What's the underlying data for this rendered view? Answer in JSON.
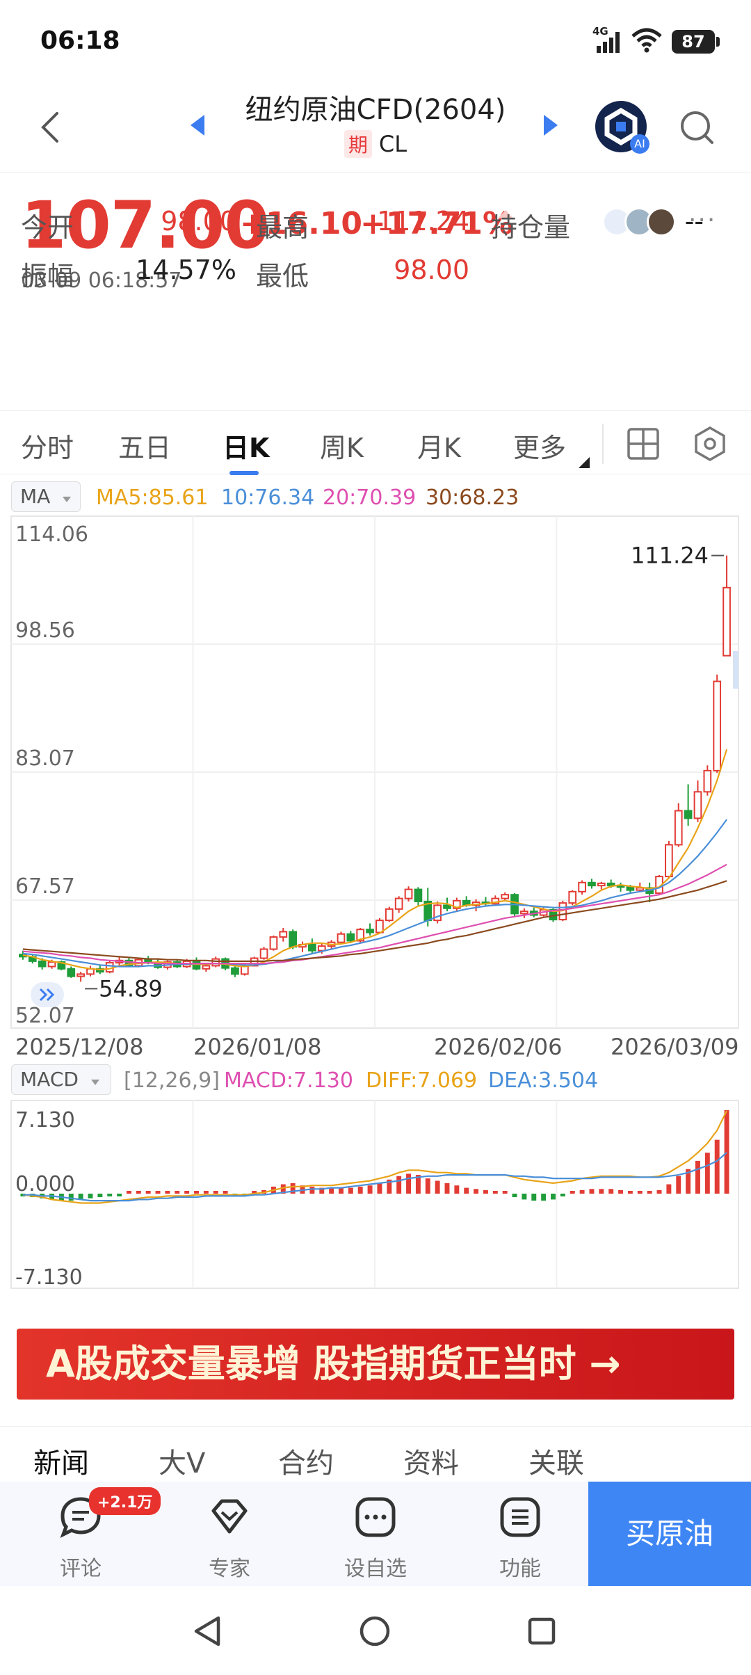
{
  "status_bar": {
    "time": "06:18",
    "network": "4G",
    "battery": "87"
  },
  "header": {
    "title": "纽约原油CFD(2604)",
    "badge": "期",
    "symbol": "CL"
  },
  "quote": {
    "price": "107.00",
    "change": "+16.10",
    "change_pct": "+17.71%",
    "timestamp": "03-09 06:18:57",
    "stats": [
      {
        "label": "今开",
        "value": "98.00",
        "color": "#e23b34"
      },
      {
        "label": "最高",
        "value": "111.24",
        "color": "#e23b34"
      },
      {
        "label": "持仓量",
        "value": "--",
        "color": "#222222"
      },
      {
        "label": "振幅",
        "value": "14.57%",
        "color": "#222222"
      },
      {
        "label": "最低",
        "value": "98.00",
        "color": "#e23b34"
      }
    ]
  },
  "tabs": [
    "分时",
    "五日",
    "日K",
    "周K",
    "月K",
    "更多"
  ],
  "active_tab": "日K",
  "ma_indicator": {
    "selector": "MA",
    "ma5": "MA5:85.61",
    "ma10": "10:76.34",
    "ma20": "20:70.39",
    "ma30": "30:68.23"
  },
  "macd_indicator": {
    "selector": "MACD",
    "params": "[12,26,9]",
    "macd": "MACD:7.130",
    "diff": "DIFF:7.069",
    "dea": "DEA:3.504"
  },
  "colors": {
    "up": "#e23b34",
    "down": "#1f9d3a",
    "ma5": "#e8a317",
    "ma10": "#4a8fd8",
    "ma20": "#de4fb0",
    "ma30": "#8b4a1e",
    "accent": "#3b7cf0"
  },
  "chart_data": [
    {
      "type": "candlestick",
      "y_ticks": [
        "114.06",
        "98.56",
        "83.07",
        "67.57",
        "52.07"
      ],
      "ylim": [
        52.07,
        114.06
      ],
      "x_ticks": [
        "2025/12/08",
        "2026/01/08",
        "2026/02/06",
        "2026/03/09"
      ],
      "high_label": "111.24",
      "low_label": "54.89",
      "candles": [
        [
          58.5,
          59.0,
          57.8,
          58.2
        ],
        [
          58.2,
          58.6,
          57.3,
          57.6
        ],
        [
          57.6,
          58.0,
          56.5,
          56.9
        ],
        [
          56.9,
          57.8,
          56.6,
          57.5
        ],
        [
          57.5,
          57.7,
          56.4,
          56.6
        ],
        [
          56.6,
          56.9,
          55.4,
          55.6
        ],
        [
          55.6,
          56.2,
          54.89,
          55.9
        ],
        [
          55.9,
          57.0,
          55.6,
          56.6
        ],
        [
          56.6,
          57.1,
          55.9,
          56.2
        ],
        [
          56.2,
          57.6,
          56.0,
          57.4
        ],
        [
          57.4,
          58.2,
          57.0,
          57.7
        ],
        [
          57.7,
          58.0,
          56.8,
          57.0
        ],
        [
          57.0,
          58.0,
          56.8,
          57.8
        ],
        [
          57.8,
          58.3,
          57.2,
          57.4
        ],
        [
          57.4,
          57.9,
          56.6,
          56.8
        ],
        [
          56.8,
          57.7,
          56.5,
          57.5
        ],
        [
          57.5,
          57.8,
          56.7,
          56.9
        ],
        [
          56.9,
          57.9,
          56.7,
          57.6
        ],
        [
          57.6,
          58.1,
          56.4,
          56.6
        ],
        [
          56.6,
          57.3,
          56.2,
          57.0
        ],
        [
          57.0,
          58.2,
          56.8,
          57.9
        ],
        [
          57.9,
          58.1,
          56.4,
          56.7
        ],
        [
          56.7,
          57.4,
          55.5,
          55.9
        ],
        [
          55.9,
          57.2,
          55.7,
          57.0
        ],
        [
          57.0,
          58.2,
          56.9,
          58.0
        ],
        [
          58.0,
          59.5,
          57.8,
          59.2
        ],
        [
          59.2,
          61.0,
          59.0,
          60.8
        ],
        [
          60.8,
          62.0,
          60.2,
          61.5
        ],
        [
          61.5,
          61.8,
          59.2,
          59.5
        ],
        [
          59.5,
          60.2,
          58.8,
          59.8
        ],
        [
          59.8,
          60.6,
          58.6,
          59.0
        ],
        [
          59.0,
          60.0,
          58.6,
          59.6
        ],
        [
          59.6,
          60.4,
          59.2,
          60.1
        ],
        [
          60.1,
          61.5,
          59.8,
          61.2
        ],
        [
          61.2,
          61.6,
          60.0,
          60.3
        ],
        [
          60.3,
          62.0,
          60.0,
          61.8
        ],
        [
          61.8,
          62.6,
          61.0,
          61.4
        ],
        [
          61.4,
          63.3,
          61.2,
          63.0
        ],
        [
          63.0,
          64.8,
          62.8,
          64.5
        ],
        [
          64.5,
          66.2,
          64.0,
          65.9
        ],
        [
          65.9,
          67.5,
          65.5,
          67.1
        ],
        [
          67.1,
          67.4,
          65.0,
          65.5
        ],
        [
          65.5,
          67.3,
          62.2,
          63.0
        ],
        [
          63.0,
          65.5,
          62.6,
          65.0
        ],
        [
          65.0,
          66.0,
          64.2,
          64.6
        ],
        [
          64.6,
          66.0,
          64.3,
          65.6
        ],
        [
          65.6,
          66.2,
          64.8,
          65.0
        ],
        [
          65.0,
          65.8,
          64.2,
          65.4
        ],
        [
          65.4,
          66.1,
          64.8,
          65.2
        ],
        [
          65.2,
          66.3,
          64.9,
          65.9
        ],
        [
          65.9,
          66.7,
          65.6,
          66.4
        ],
        [
          66.4,
          66.6,
          63.5,
          63.9
        ],
        [
          63.9,
          64.6,
          63.3,
          64.2
        ],
        [
          64.2,
          64.7,
          63.4,
          63.7
        ],
        [
          63.7,
          64.8,
          63.5,
          64.4
        ],
        [
          64.4,
          64.6,
          62.8,
          63.1
        ],
        [
          63.1,
          65.6,
          62.9,
          65.3
        ],
        [
          65.3,
          67.0,
          65.0,
          66.8
        ],
        [
          66.8,
          68.3,
          66.4,
          68.0
        ],
        [
          68.0,
          68.5,
          67.2,
          67.6
        ],
        [
          67.6,
          68.1,
          67.1,
          67.9
        ],
        [
          67.9,
          68.4,
          67.3,
          67.6
        ],
        [
          67.6,
          68.0,
          66.8,
          67.4
        ],
        [
          67.4,
          67.7,
          66.6,
          67.0
        ],
        [
          67.0,
          68.0,
          66.8,
          67.3
        ],
        [
          67.3,
          68.0,
          65.4,
          66.6
        ],
        [
          66.6,
          69.0,
          66.4,
          68.8
        ],
        [
          68.8,
          73.5,
          68.6,
          73.0
        ],
        [
          73.0,
          78.5,
          72.7,
          77.5
        ],
        [
          77.5,
          81.0,
          75.5,
          76.5
        ],
        [
          76.5,
          81.5,
          76.0,
          80.0
        ],
        [
          80.0,
          83.5,
          79.5,
          82.8
        ],
        [
          82.8,
          95.5,
          82.5,
          94.6
        ],
        [
          98.0,
          111.24,
          98.0,
          107.0
        ]
      ],
      "series": [
        {
          "name": "MA5",
          "values": [
            58.4,
            58.2,
            57.8,
            57.6,
            57.4,
            57.1,
            56.8,
            56.6,
            56.5,
            56.6,
            57.0,
            57.2,
            57.3,
            57.4,
            57.5,
            57.4,
            57.3,
            57.2,
            57.2,
            57.2,
            57.3,
            57.2,
            57.0,
            56.9,
            57.1,
            57.5,
            58.2,
            59.0,
            59.5,
            59.8,
            60.0,
            60.0,
            59.8,
            59.9,
            60.1,
            60.5,
            60.8,
            61.3,
            62.2,
            63.2,
            64.2,
            64.9,
            65.2,
            65.3,
            65.2,
            64.7,
            65.0,
            65.1,
            65.2,
            65.4,
            65.6,
            65.4,
            65.1,
            64.8,
            64.5,
            64.2,
            64.3,
            64.8,
            65.5,
            66.2,
            67.0,
            67.5,
            67.7,
            67.5,
            67.4,
            67.2,
            67.4,
            68.6,
            70.6,
            72.6,
            75.2,
            78.1,
            81.5,
            85.61
          ]
        },
        {
          "name": "MA10",
          "values": [
            58.6,
            58.5,
            58.3,
            58.1,
            57.9,
            57.7,
            57.5,
            57.3,
            57.1,
            57.0,
            56.9,
            56.9,
            56.9,
            57.0,
            57.0,
            57.1,
            57.2,
            57.2,
            57.3,
            57.3,
            57.3,
            57.3,
            57.2,
            57.1,
            57.1,
            57.2,
            57.4,
            57.7,
            58.0,
            58.3,
            58.6,
            58.9,
            59.2,
            59.5,
            59.7,
            60.0,
            60.3,
            60.6,
            61.0,
            61.5,
            62.0,
            62.5,
            63.0,
            63.5,
            63.9,
            64.2,
            64.5,
            64.7,
            64.9,
            65.0,
            65.1,
            65.1,
            65.0,
            64.9,
            64.8,
            64.7,
            64.7,
            64.8,
            65.0,
            65.3,
            65.6,
            66.0,
            66.3,
            66.6,
            66.8,
            67.0,
            67.3,
            68.0,
            69.0,
            70.2,
            71.5,
            73.0,
            74.6,
            76.34
          ]
        },
        {
          "name": "MA20",
          "values": [
            58.9,
            58.8,
            58.7,
            58.6,
            58.4,
            58.3,
            58.1,
            58.0,
            57.8,
            57.7,
            57.6,
            57.5,
            57.4,
            57.4,
            57.3,
            57.3,
            57.3,
            57.3,
            57.3,
            57.3,
            57.3,
            57.3,
            57.3,
            57.3,
            57.3,
            57.3,
            57.4,
            57.5,
            57.7,
            57.8,
            58.0,
            58.2,
            58.4,
            58.6,
            58.8,
            59.0,
            59.2,
            59.4,
            59.7,
            60.0,
            60.3,
            60.6,
            60.9,
            61.2,
            61.5,
            61.8,
            62.1,
            62.4,
            62.7,
            63.0,
            63.3,
            63.5,
            63.7,
            63.9,
            64.1,
            64.3,
            64.4,
            64.6,
            64.8,
            65.0,
            65.2,
            65.4,
            65.6,
            65.8,
            66.0,
            66.2,
            66.4,
            66.8,
            67.3,
            67.8,
            68.4,
            69.0,
            69.7,
            70.39
          ]
        },
        {
          "name": "MA30",
          "values": [
            59.2,
            59.1,
            59.0,
            58.9,
            58.8,
            58.7,
            58.6,
            58.5,
            58.4,
            58.3,
            58.2,
            58.1,
            58.0,
            57.9,
            57.9,
            57.8,
            57.8,
            57.7,
            57.7,
            57.7,
            57.6,
            57.6,
            57.6,
            57.6,
            57.6,
            57.6,
            57.7,
            57.7,
            57.8,
            57.9,
            58.0,
            58.1,
            58.2,
            58.3,
            58.5,
            58.6,
            58.8,
            59.0,
            59.2,
            59.4,
            59.6,
            59.8,
            60.0,
            60.3,
            60.5,
            60.8,
            61.0,
            61.3,
            61.6,
            61.9,
            62.2,
            62.5,
            62.8,
            63.1,
            63.4,
            63.6,
            63.8,
            64.0,
            64.2,
            64.4,
            64.6,
            64.8,
            65.0,
            65.2,
            65.4,
            65.6,
            65.8,
            66.1,
            66.4,
            66.7,
            67.0,
            67.4,
            67.8,
            68.23
          ]
        }
      ]
    },
    {
      "type": "bar",
      "y_ticks": [
        "7.130",
        "0.000",
        "-7.130"
      ],
      "ylim": [
        -7.13,
        7.13
      ],
      "macd_values": [
        -0.2,
        -0.3,
        -0.4,
        -0.5,
        -0.6,
        -0.6,
        -0.5,
        -0.4,
        -0.3,
        -0.2,
        -0.1,
        0.1,
        0.2,
        0.2,
        0.2,
        0.1,
        0.1,
        0.1,
        0.1,
        0.1,
        0.1,
        0.0,
        -0.1,
        -0.1,
        0.1,
        0.3,
        0.6,
        0.8,
        0.9,
        0.7,
        0.6,
        0.5,
        0.5,
        0.5,
        0.5,
        0.6,
        0.7,
        0.9,
        1.2,
        1.5,
        1.7,
        1.6,
        1.3,
        1.1,
        0.9,
        0.7,
        0.5,
        0.4,
        0.3,
        0.2,
        0.1,
        -0.3,
        -0.5,
        -0.6,
        -0.6,
        -0.5,
        -0.2,
        0.1,
        0.3,
        0.4,
        0.4,
        0.4,
        0.3,
        0.2,
        0.1,
        0.1,
        0.3,
        0.8,
        1.5,
        2.1,
        2.8,
        3.5,
        4.6,
        7.13
      ],
      "series": [
        {
          "name": "DIFF",
          "values": [
            -0.1,
            -0.2,
            -0.3,
            -0.5,
            -0.6,
            -0.7,
            -0.8,
            -0.8,
            -0.8,
            -0.7,
            -0.6,
            -0.5,
            -0.4,
            -0.3,
            -0.3,
            -0.2,
            -0.2,
            -0.2,
            -0.1,
            -0.1,
            -0.1,
            -0.1,
            -0.1,
            -0.1,
            0.0,
            0.1,
            0.3,
            0.5,
            0.6,
            0.6,
            0.7,
            0.7,
            0.7,
            0.8,
            0.9,
            1.0,
            1.1,
            1.3,
            1.5,
            1.8,
            2.0,
            2.0,
            1.9,
            1.8,
            1.8,
            1.7,
            1.7,
            1.6,
            1.6,
            1.6,
            1.6,
            1.4,
            1.2,
            1.1,
            1.0,
            0.9,
            1.0,
            1.1,
            1.3,
            1.4,
            1.5,
            1.5,
            1.5,
            1.5,
            1.4,
            1.4,
            1.5,
            1.8,
            2.3,
            2.8,
            3.5,
            4.3,
            5.4,
            7.069
          ]
        },
        {
          "name": "DEA",
          "values": [
            -0.1,
            -0.1,
            -0.2,
            -0.2,
            -0.3,
            -0.4,
            -0.5,
            -0.6,
            -0.6,
            -0.6,
            -0.6,
            -0.6,
            -0.5,
            -0.5,
            -0.4,
            -0.4,
            -0.3,
            -0.3,
            -0.3,
            -0.2,
            -0.2,
            -0.2,
            -0.2,
            -0.2,
            -0.1,
            -0.1,
            0.0,
            0.1,
            0.2,
            0.3,
            0.4,
            0.4,
            0.5,
            0.5,
            0.6,
            0.7,
            0.8,
            0.9,
            1.0,
            1.1,
            1.3,
            1.4,
            1.5,
            1.5,
            1.6,
            1.6,
            1.6,
            1.6,
            1.6,
            1.6,
            1.6,
            1.5,
            1.5,
            1.4,
            1.4,
            1.3,
            1.3,
            1.3,
            1.3,
            1.3,
            1.4,
            1.4,
            1.4,
            1.4,
            1.4,
            1.4,
            1.4,
            1.5,
            1.6,
            1.8,
            2.1,
            2.4,
            2.8,
            3.504
          ]
        }
      ]
    }
  ],
  "banner": {
    "text": "A股成交量暴增 股指期货正当时 →"
  },
  "news_tabs": [
    "新闻",
    "大V",
    "合约",
    "资料",
    "关联"
  ],
  "bottom_bar": {
    "items": [
      "评论",
      "专家",
      "设自选",
      "功能"
    ],
    "comment_badge": "+2.1万",
    "buy_label": "买原油"
  }
}
